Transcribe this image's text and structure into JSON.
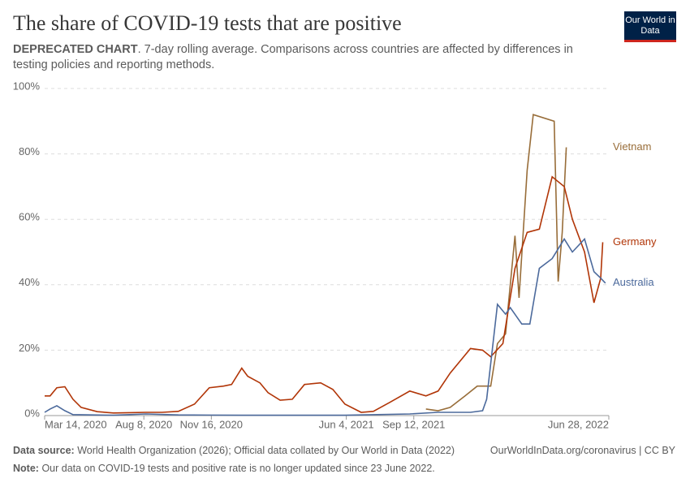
{
  "chart_data": {
    "type": "line",
    "title": "The share of COVID-19 tests that are positive",
    "subtitle_lead": "DEPRECATED CHART",
    "subtitle": ". 7-day rolling average. Comparisons across countries are affected by differences in testing policies and reporting methods.",
    "logo": "Our World in Data",
    "source_label": "Data source:",
    "source": "World Health Organization (2026); Official data collated by Our World in Data (2022)",
    "link": "OurWorldInData.org/coronavirus | CC BY",
    "note_label": "Note:",
    "note": "Our data on COVID-19 tests and positive rate is no longer updated since 23 June 2022.",
    "xlim": [
      "2020-03-14",
      "2022-06-28"
    ],
    "xticks": [
      {
        "value": "2020-03-14",
        "label": "Mar 14, 2020"
      },
      {
        "value": "2020-08-08",
        "label": "Aug 8, 2020"
      },
      {
        "value": "2020-11-16",
        "label": "Nov 16, 2020"
      },
      {
        "value": "2021-06-04",
        "label": "Jun 4, 2021"
      },
      {
        "value": "2021-09-12",
        "label": "Sep 12, 2021"
      },
      {
        "value": "2022-06-28",
        "label": "Jun 28, 2022"
      }
    ],
    "ylim": [
      0,
      100
    ],
    "yticks": [
      {
        "value": 0,
        "label": "0%"
      },
      {
        "value": 20,
        "label": "20%"
      },
      {
        "value": 40,
        "label": "40%"
      },
      {
        "value": 60,
        "label": "60%"
      },
      {
        "value": 80,
        "label": "80%"
      },
      {
        "value": 100,
        "label": "100%"
      }
    ],
    "grid": true,
    "series": [
      {
        "name": "Vietnam",
        "color": "#986d39",
        "x": [
          "2021-09-30",
          "2021-10-18",
          "2021-11-05",
          "2021-11-27",
          "2021-12-15",
          "2022-01-04",
          "2022-01-14",
          "2022-01-26",
          "2022-02-09",
          "2022-02-15",
          "2022-02-27",
          "2022-03-08",
          "2022-04-08",
          "2022-04-14",
          "2022-04-20",
          "2022-04-26"
        ],
        "values": [
          2,
          1.5,
          2.5,
          6,
          9,
          9,
          22,
          25,
          55,
          36,
          75,
          92,
          90,
          41,
          56,
          82
        ]
      },
      {
        "name": "Germany",
        "color": "#b13507",
        "x": [
          "2020-03-14",
          "2020-03-22",
          "2020-04-01",
          "2020-04-13",
          "2020-04-25",
          "2020-05-07",
          "2020-05-31",
          "2020-06-24",
          "2020-07-18",
          "2020-08-11",
          "2020-09-04",
          "2020-09-28",
          "2020-10-22",
          "2020-11-13",
          "2020-12-04",
          "2020-12-16",
          "2020-12-31",
          "2021-01-09",
          "2021-01-27",
          "2021-02-08",
          "2021-02-26",
          "2021-03-16",
          "2021-04-03",
          "2021-04-27",
          "2021-05-15",
          "2021-06-02",
          "2021-06-26",
          "2021-07-14",
          "2021-08-07",
          "2021-09-06",
          "2021-09-30",
          "2021-10-18",
          "2021-11-05",
          "2021-12-05",
          "2021-12-23",
          "2022-01-04",
          "2022-01-22",
          "2022-02-09",
          "2022-02-27",
          "2022-03-17",
          "2022-04-05",
          "2022-04-23",
          "2022-05-05",
          "2022-05-23",
          "2022-06-06",
          "2022-06-16",
          "2022-06-19"
        ],
        "values": [
          6,
          6,
          8.5,
          8.8,
          5,
          2.5,
          1.2,
          0.8,
          0.9,
          1,
          1,
          1.3,
          3.5,
          8.5,
          9,
          9.5,
          14.5,
          12,
          10,
          7,
          4.7,
          5,
          9.5,
          10,
          8,
          3.5,
          1,
          1.3,
          4,
          7.5,
          6,
          7.5,
          13,
          20.5,
          20,
          18,
          22,
          45,
          56,
          57,
          73,
          70,
          60,
          50,
          34.5,
          42,
          53
        ]
      },
      {
        "name": "Australia",
        "color": "#4c6a9c",
        "x": [
          "2020-03-14",
          "2020-03-22",
          "2020-04-01",
          "2020-04-13",
          "2020-04-25",
          "2020-06-24",
          "2020-08-11",
          "2020-09-28",
          "2020-12-31",
          "2021-06-02",
          "2021-09-06",
          "2021-10-18",
          "2021-12-05",
          "2021-12-23",
          "2021-12-29",
          "2022-01-14",
          "2022-01-26",
          "2022-02-02",
          "2022-02-19",
          "2022-03-03",
          "2022-03-17",
          "2022-04-05",
          "2022-04-23",
          "2022-05-05",
          "2022-05-23",
          "2022-06-06",
          "2022-06-16",
          "2022-06-23"
        ],
        "values": [
          1,
          2,
          3,
          1.5,
          0.3,
          0.1,
          0.5,
          0.2,
          0.1,
          0.1,
          0.5,
          1,
          1,
          1.5,
          5,
          34,
          31,
          33,
          28,
          28,
          45,
          48,
          54,
          50,
          54,
          44,
          42,
          40.5
        ]
      }
    ]
  }
}
